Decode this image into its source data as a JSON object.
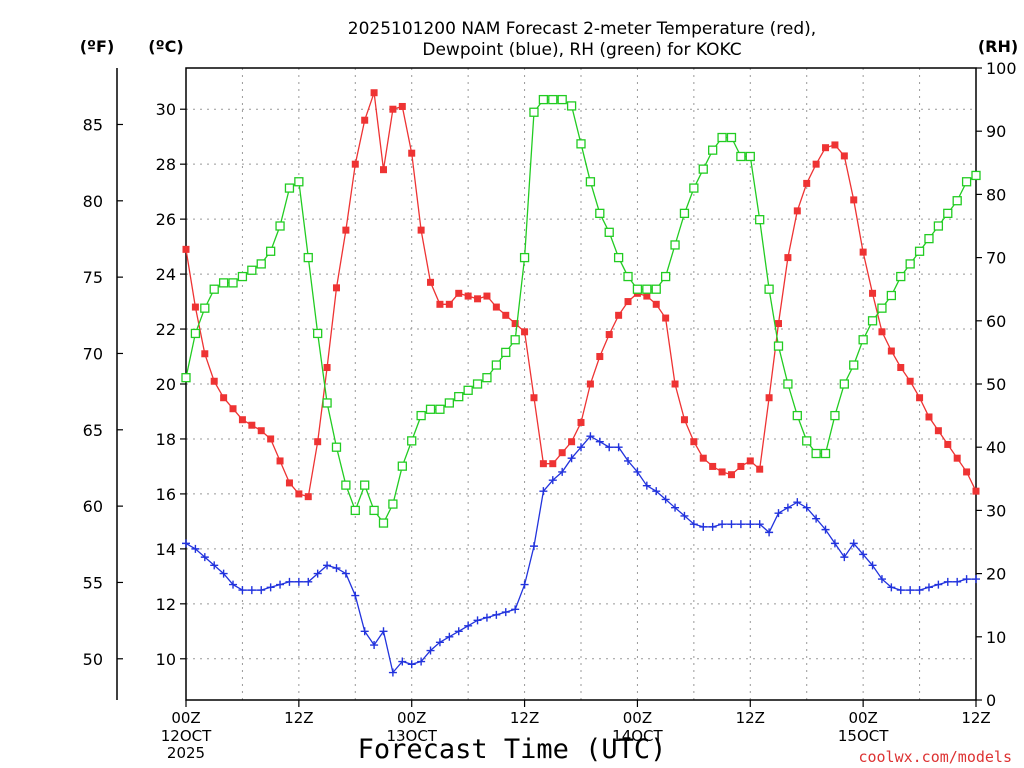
{
  "chart_data": {
    "type": "line",
    "title_line1": "2025101200 NAM Forecast 2-meter Temperature (red),",
    "title_line2": "Dewpoint (blue), RH (green) for KOKC",
    "unit_f": "(ºF)",
    "unit_c": "(ºC)",
    "unit_rh": "(RH)",
    "xlabel": "Forecast Time (UTC)",
    "credit": "coolwx.com/models",
    "x_range_hours": [
      0,
      84
    ],
    "celsius_range": [
      8.5,
      31.5
    ],
    "rh_range": [
      0,
      100
    ],
    "celsius_ticks": [
      "10",
      "12",
      "14",
      "16",
      "18",
      "20",
      "22",
      "24",
      "26",
      "28",
      "30"
    ],
    "fahrenheit_ticks": [
      "50",
      "55",
      "60",
      "65",
      "70",
      "75",
      "80",
      "85"
    ],
    "rh_ticks": [
      "0",
      "10",
      "20",
      "30",
      "40",
      "50",
      "60",
      "70",
      "80",
      "90",
      "100"
    ],
    "x_ticks": [
      {
        "hour": 0,
        "label": "00Z",
        "sub1": "12OCT",
        "sub2": "2025"
      },
      {
        "hour": 12,
        "label": "12Z",
        "sub1": "",
        "sub2": ""
      },
      {
        "hour": 24,
        "label": "00Z",
        "sub1": "13OCT",
        "sub2": ""
      },
      {
        "hour": 36,
        "label": "12Z",
        "sub1": "",
        "sub2": ""
      },
      {
        "hour": 48,
        "label": "00Z",
        "sub1": "14OCT",
        "sub2": ""
      },
      {
        "hour": 60,
        "label": "12Z",
        "sub1": "",
        "sub2": ""
      },
      {
        "hour": 72,
        "label": "00Z",
        "sub1": "15OCT",
        "sub2": ""
      },
      {
        "hour": 84,
        "label": "12Z",
        "sub1": "",
        "sub2": ""
      }
    ],
    "grid": true,
    "series": [
      {
        "key": "temperature",
        "color": "#ee3333",
        "unit": "C",
        "x": [
          0,
          1,
          2,
          3,
          4,
          5,
          6,
          7,
          8,
          9,
          10,
          11,
          12,
          13,
          14,
          15,
          16,
          17,
          18,
          19,
          20,
          21,
          22,
          23,
          24,
          25,
          26,
          27,
          28,
          29,
          30,
          31,
          32,
          33,
          34,
          35,
          36,
          37,
          38,
          39,
          40,
          41,
          42,
          43,
          44,
          45,
          46,
          47,
          48,
          49,
          50,
          51,
          52,
          53,
          54,
          55,
          56,
          57,
          58,
          59,
          60,
          61,
          62,
          63,
          64,
          65,
          66,
          67,
          68,
          69,
          70,
          71,
          72,
          73,
          74,
          75,
          76,
          77,
          78,
          79,
          80,
          81,
          82,
          83,
          84
        ],
        "values": [
          24.9,
          22.8,
          21.1,
          20.1,
          19.5,
          19.1,
          18.7,
          18.5,
          18.3,
          18.0,
          17.2,
          16.4,
          16.0,
          15.9,
          17.9,
          20.6,
          23.5,
          25.6,
          28.0,
          29.6,
          30.6,
          27.8,
          30.0,
          30.1,
          28.4,
          25.6,
          23.7,
          22.9,
          22.9,
          23.3,
          23.2,
          23.1,
          23.2,
          22.8,
          22.5,
          22.2,
          21.9,
          19.5,
          17.1,
          17.1,
          17.5,
          17.9,
          18.6,
          20.0,
          21.0,
          21.8,
          22.5,
          23.0,
          23.3,
          23.2,
          22.9,
          22.4,
          20.0,
          18.7,
          17.9,
          17.3,
          17.0,
          16.8,
          16.7,
          17.0,
          17.2,
          16.9,
          19.5,
          22.2,
          24.6,
          26.3,
          27.3,
          28.0,
          28.6,
          28.7,
          28.3,
          26.7,
          24.8,
          23.3,
          21.9,
          21.2,
          20.6,
          20.1,
          19.5,
          18.8,
          18.3,
          17.8,
          17.3,
          16.8,
          16.1
        ]
      },
      {
        "key": "dewpoint",
        "color": "#2233dd",
        "unit": "C",
        "x": [
          0,
          1,
          2,
          3,
          4,
          5,
          6,
          7,
          8,
          9,
          10,
          11,
          12,
          13,
          14,
          15,
          16,
          17,
          18,
          19,
          20,
          21,
          22,
          23,
          24,
          25,
          26,
          27,
          28,
          29,
          30,
          31,
          32,
          33,
          34,
          35,
          36,
          37,
          38,
          39,
          40,
          41,
          42,
          43,
          44,
          45,
          46,
          47,
          48,
          49,
          50,
          51,
          52,
          53,
          54,
          55,
          56,
          57,
          58,
          59,
          60,
          61,
          62,
          63,
          64,
          65,
          66,
          67,
          68,
          69,
          70,
          71,
          72,
          73,
          74,
          75,
          76,
          77,
          78,
          79,
          80,
          81,
          82,
          83,
          84
        ],
        "values": [
          14.2,
          14.0,
          13.7,
          13.4,
          13.1,
          12.7,
          12.5,
          12.5,
          12.5,
          12.6,
          12.7,
          12.8,
          12.8,
          12.8,
          13.1,
          13.4,
          13.3,
          13.1,
          12.3,
          11.0,
          10.5,
          11.0,
          9.5,
          9.9,
          9.8,
          9.9,
          10.3,
          10.6,
          10.8,
          11.0,
          11.2,
          11.4,
          11.5,
          11.6,
          11.7,
          11.8,
          12.7,
          14.1,
          16.1,
          16.5,
          16.8,
          17.3,
          17.7,
          18.1,
          17.9,
          17.7,
          17.7,
          17.2,
          16.8,
          16.3,
          16.1,
          15.8,
          15.5,
          15.2,
          14.9,
          14.8,
          14.8,
          14.9,
          14.9,
          14.9,
          14.9,
          14.9,
          14.6,
          15.3,
          15.5,
          15.7,
          15.5,
          15.1,
          14.7,
          14.2,
          13.7,
          14.2,
          13.8,
          13.4,
          12.9,
          12.6,
          12.5,
          12.5,
          12.5,
          12.6,
          12.7,
          12.8,
          12.8,
          12.9,
          12.9
        ]
      },
      {
        "key": "rh",
        "color": "#22cc22",
        "unit": "RH",
        "x": [
          0,
          1,
          2,
          3,
          4,
          5,
          6,
          7,
          8,
          9,
          10,
          11,
          12,
          13,
          14,
          15,
          16,
          17,
          18,
          19,
          20,
          21,
          22,
          23,
          24,
          25,
          26,
          27,
          28,
          29,
          30,
          31,
          32,
          33,
          34,
          35,
          36,
          37,
          38,
          39,
          40,
          41,
          42,
          43,
          44,
          45,
          46,
          47,
          48,
          49,
          50,
          51,
          52,
          53,
          54,
          55,
          56,
          57,
          58,
          59,
          60,
          61,
          62,
          63,
          64,
          65,
          66,
          67,
          68,
          69,
          70,
          71,
          72,
          73,
          74,
          75,
          76,
          77,
          78,
          79,
          80,
          81,
          82,
          83,
          84
        ],
        "values": [
          51,
          58,
          62,
          65,
          66,
          66,
          67,
          68,
          69,
          71,
          75,
          81,
          82,
          70,
          58,
          47,
          40,
          34,
          30,
          34,
          30,
          28,
          31,
          37,
          41,
          45,
          46,
          46,
          47,
          48,
          49,
          50,
          51,
          53,
          55,
          57,
          70,
          93,
          95,
          95,
          95,
          94,
          88,
          82,
          77,
          74,
          70,
          67,
          65,
          65,
          65,
          67,
          72,
          77,
          81,
          84,
          87,
          89,
          89,
          86,
          86,
          76,
          65,
          56,
          50,
          45,
          41,
          39,
          39,
          45,
          50,
          53,
          57,
          60,
          62,
          64,
          67,
          69,
          71,
          73,
          75,
          77,
          79,
          82,
          83
        ]
      }
    ]
  }
}
